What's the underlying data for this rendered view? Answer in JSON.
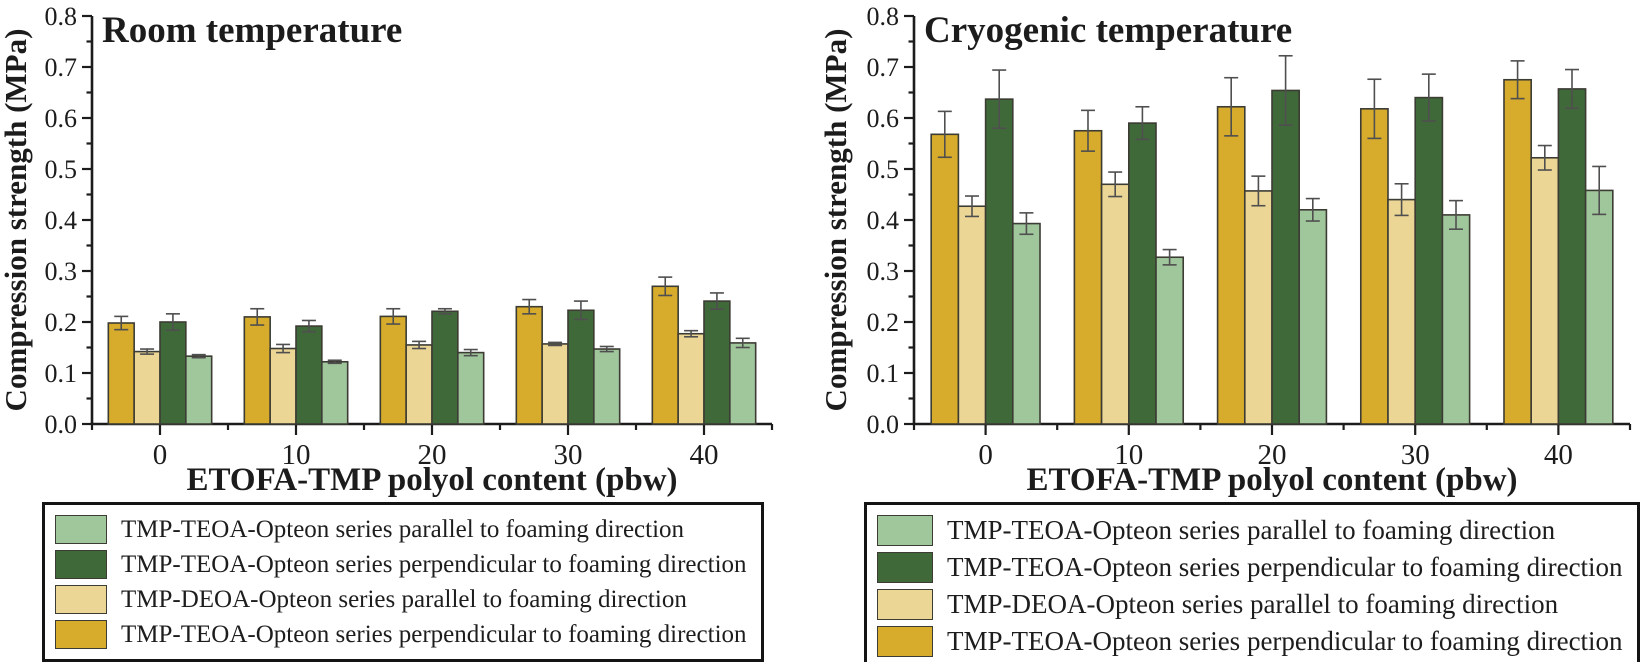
{
  "styles": {
    "axis_color": "#1c1c1c",
    "bar_stroke": "#3c3c34",
    "error_color": "#4f4f4f",
    "background": "#ffffff",
    "gold": "#d7ab2b",
    "tan": "#ecd695",
    "dark_green": "#40693a",
    "light_green": "#a0c69c"
  },
  "chart_data": [
    {
      "type": "bar",
      "title": "Room temperature",
      "xlabel": "ETOFA-TMP polyol content (pbw)",
      "ylabel": "Compression strength (MPa)",
      "ylim": [
        0.0,
        0.8
      ],
      "ytick_step": 0.1,
      "yminor_step": 0.05,
      "grid": false,
      "legend_position": "below",
      "categories": [
        "0",
        "10",
        "20",
        "30",
        "40"
      ],
      "series": [
        {
          "name": "TMP-TEOA-Opteon series perpendicular to foaming direction",
          "color": "#d7ab2b",
          "values": [
            0.198,
            0.21,
            0.211,
            0.23,
            0.27
          ],
          "errors": [
            0.013,
            0.016,
            0.015,
            0.014,
            0.018
          ]
        },
        {
          "name": "TMP-DEOA-Opteon series parallel to foaming direction",
          "color": "#ecd695",
          "values": [
            0.142,
            0.148,
            0.155,
            0.157,
            0.177
          ],
          "errors": [
            0.005,
            0.008,
            0.007,
            0.003,
            0.006
          ]
        },
        {
          "name": "TMP-TEOA-Opteon series perpendicular to foaming direction",
          "color": "#40693a",
          "values": [
            0.2,
            0.192,
            0.221,
            0.223,
            0.241
          ],
          "errors": [
            0.016,
            0.011,
            0.005,
            0.018,
            0.016
          ]
        },
        {
          "name": "TMP-TEOA-Opteon series parallel to foaming direction",
          "color": "#a0c69c",
          "values": [
            0.133,
            0.122,
            0.14,
            0.147,
            0.159
          ],
          "errors": [
            0.003,
            0.003,
            0.006,
            0.005,
            0.009
          ]
        }
      ],
      "legend": [
        {
          "color": "#a0c69c",
          "label": "TMP-TEOA-Opteon series parallel to foaming direction"
        },
        {
          "color": "#40693a",
          "label": "TMP-TEOA-Opteon series perpendicular to foaming direction"
        },
        {
          "color": "#ecd695",
          "label": "TMP-DEOA-Opteon series parallel to foaming direction"
        },
        {
          "color": "#d7ab2b",
          "label": "TMP-TEOA-Opteon series perpendicular to foaming direction"
        }
      ]
    },
    {
      "type": "bar",
      "title": "Cryogenic temperature",
      "xlabel": "ETOFA-TMP polyol content (pbw)",
      "ylabel": "Compression strength (MPa)",
      "ylim": [
        0.0,
        0.8
      ],
      "ytick_step": 0.1,
      "yminor_step": 0.05,
      "grid": false,
      "legend_position": "below",
      "categories": [
        "0",
        "10",
        "20",
        "30",
        "40"
      ],
      "series": [
        {
          "name": "TMP-TEOA-Opteon series perpendicular to foaming direction",
          "color": "#d7ab2b",
          "values": [
            0.568,
            0.575,
            0.622,
            0.618,
            0.675
          ],
          "errors": [
            0.045,
            0.04,
            0.057,
            0.058,
            0.037
          ]
        },
        {
          "name": "TMP-DEOA-Opteon series parallel to foaming direction",
          "color": "#ecd695",
          "values": [
            0.427,
            0.47,
            0.457,
            0.44,
            0.522
          ],
          "errors": [
            0.02,
            0.024,
            0.029,
            0.031,
            0.024
          ]
        },
        {
          "name": "TMP-TEOA-Opteon series perpendicular to foaming direction",
          "color": "#40693a",
          "values": [
            0.637,
            0.59,
            0.654,
            0.64,
            0.657
          ],
          "errors": [
            0.057,
            0.032,
            0.068,
            0.046,
            0.038
          ]
        },
        {
          "name": "TMP-TEOA-Opteon series parallel to foaming direction",
          "color": "#a0c69c",
          "values": [
            0.393,
            0.327,
            0.42,
            0.41,
            0.458
          ],
          "errors": [
            0.021,
            0.015,
            0.022,
            0.028,
            0.047
          ]
        }
      ],
      "legend": [
        {
          "color": "#a0c69c",
          "label": "TMP-TEOA-Opteon series parallel to foaming direction"
        },
        {
          "color": "#40693a",
          "label": "TMP-TEOA-Opteon series perpendicular to foaming direction"
        },
        {
          "color": "#ecd695",
          "label": "TMP-DEOA-Opteon series parallel to foaming direction"
        },
        {
          "color": "#d7ab2b",
          "label": "TMP-TEOA-Opteon series perpendicular to foaming direction"
        }
      ]
    }
  ]
}
